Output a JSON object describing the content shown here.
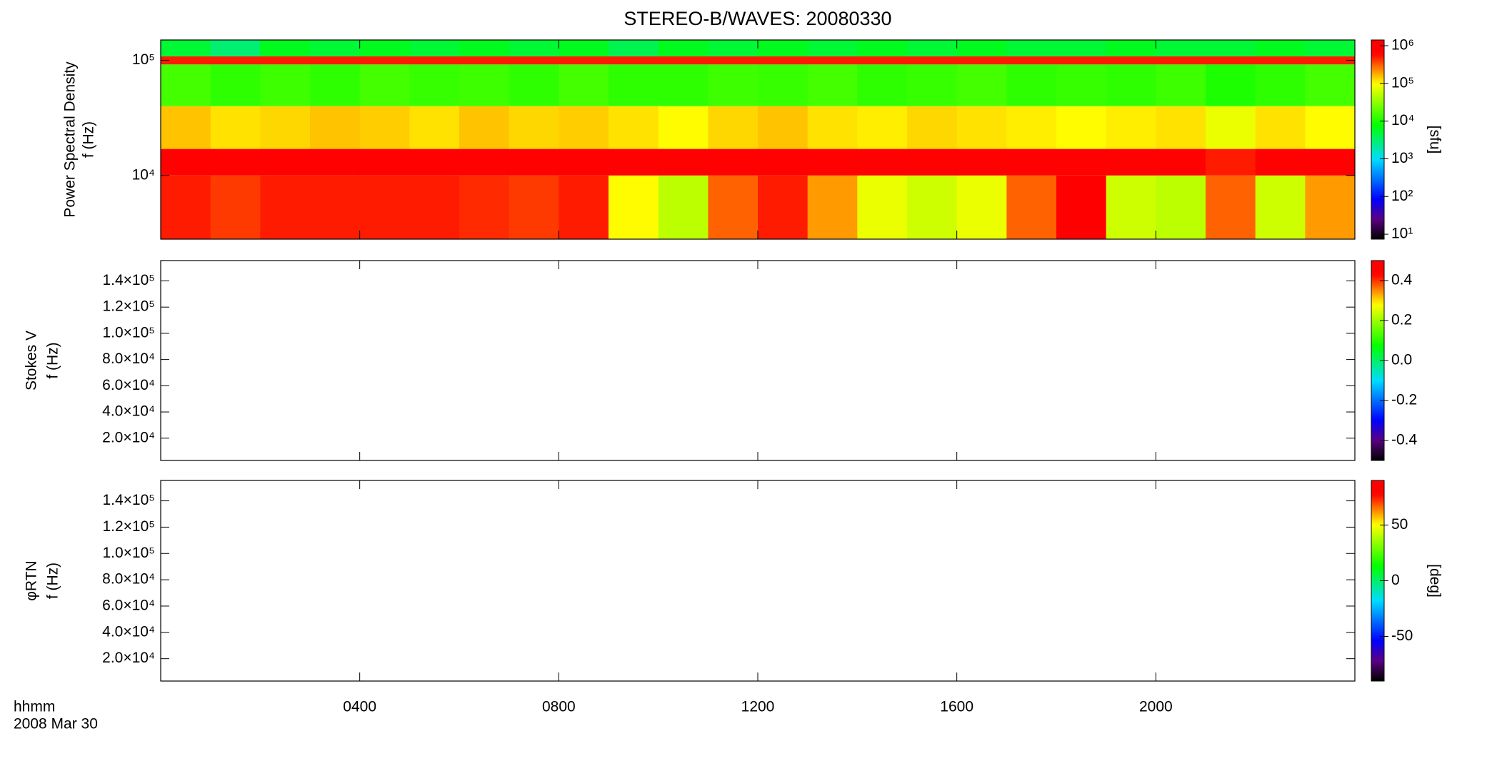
{
  "chart_data": [
    {
      "type": "heatmap",
      "title": "STEREO-B/WAVES: 20080330",
      "y_label": [
        "Power Spectral Density",
        "f (Hz)"
      ],
      "log_y": true,
      "ylim": [
        2800,
        150000
      ],
      "yticks": [
        {
          "value": 10000,
          "label": "10⁴"
        },
        {
          "value": 100000,
          "label": "10⁵"
        }
      ],
      "colormap": "rainbow",
      "x_bins": [
        0,
        1,
        2,
        3,
        4,
        5,
        6,
        7,
        8,
        9,
        10,
        11,
        12,
        13,
        14,
        15,
        16,
        17,
        18,
        19,
        20,
        21,
        22,
        23,
        24
      ],
      "y_bins": [
        2800,
        10000,
        17000,
        40000,
        92000,
        108000,
        150000
      ],
      "z": [
        [
          500000,
          400000,
          500000,
          500000,
          500000,
          500000,
          450000,
          400000,
          500000,
          100000,
          50000,
          300000,
          500000,
          200000,
          80000,
          60000,
          80000,
          300000,
          800000,
          60000,
          50000,
          300000,
          60000,
          200000
        ],
        [
          600000,
          600000,
          600000,
          600000,
          600000,
          600000,
          600000,
          600000,
          600000,
          600000,
          600000,
          600000,
          600000,
          600000,
          600000,
          600000,
          600000,
          600000,
          600000,
          600000,
          600000,
          500000,
          600000,
          600000
        ],
        [
          150000,
          120000,
          130000,
          150000,
          140000,
          120000,
          150000,
          130000,
          140000,
          120000,
          100000,
          130000,
          150000,
          120000,
          110000,
          130000,
          120000,
          110000,
          100000,
          110000,
          120000,
          80000,
          120000,
          100000
        ],
        [
          15000,
          12000,
          14000,
          12000,
          15000,
          13000,
          14000,
          12000,
          15000,
          12000,
          12000,
          14000,
          13000,
          15000,
          12000,
          13000,
          15000,
          12000,
          13000,
          12000,
          14000,
          10000,
          12000,
          15000
        ],
        [
          500000,
          500000,
          500000,
          500000,
          500000,
          500000,
          500000,
          500000,
          500000,
          500000,
          500000,
          500000,
          500000,
          500000,
          500000,
          500000,
          500000,
          500000,
          500000,
          500000,
          500000,
          500000,
          500000,
          500000
        ],
        [
          5000,
          3000,
          6000,
          5000,
          6000,
          5000,
          6000,
          5000,
          6000,
          4000,
          6000,
          5000,
          6000,
          5000,
          6000,
          5000,
          6000,
          5000,
          5000,
          6000,
          5000,
          5000,
          6000,
          5000
        ]
      ],
      "colorbar": {
        "label": "[sfu]",
        "log": true,
        "lim": [
          7.4,
          1420000
        ],
        "ticks": [
          {
            "value": 10,
            "label": "10¹"
          },
          {
            "value": 100,
            "label": "10²"
          },
          {
            "value": 1000,
            "label": "10³"
          },
          {
            "value": 10000,
            "label": "10⁴"
          },
          {
            "value": 100000,
            "label": "10⁵"
          },
          {
            "value": 1000000,
            "label": "10⁶"
          }
        ]
      }
    },
    {
      "type": "heatmap",
      "y_label": [
        "Stokes V",
        "f (Hz)"
      ],
      "log_y": false,
      "ylim": [
        3000,
        155500
      ],
      "yticks": [
        {
          "value": 20000,
          "label": "2.0×10⁴"
        },
        {
          "value": 40000,
          "label": "4.0×10⁴"
        },
        {
          "value": 60000,
          "label": "6.0×10⁴"
        },
        {
          "value": 80000,
          "label": "8.0×10⁴"
        },
        {
          "value": 100000,
          "label": "1.0×10⁵"
        },
        {
          "value": 120000,
          "label": "1.2×10⁵"
        },
        {
          "value": 140000,
          "label": "1.4×10⁵"
        }
      ],
      "colormap": "rainbow",
      "colorbar": {
        "log": false,
        "lim": [
          -0.5,
          0.5
        ],
        "ticks": [
          -0.4,
          -0.2,
          {
            "value": 0,
            "label": "0.0"
          },
          0.2,
          0.4
        ]
      }
    },
    {
      "type": "heatmap",
      "y_label": [
        "φRTN",
        "f (Hz)"
      ],
      "log_y": false,
      "ylim": [
        3000,
        155500
      ],
      "yticks": [
        {
          "value": 20000,
          "label": "2.0×10⁴"
        },
        {
          "value": 40000,
          "label": "4.0×10⁴"
        },
        {
          "value": 60000,
          "label": "6.0×10⁴"
        },
        {
          "value": 80000,
          "label": "8.0×10⁴"
        },
        {
          "value": 100000,
          "label": "1.0×10⁵"
        },
        {
          "value": 120000,
          "label": "1.2×10⁵"
        },
        {
          "value": 140000,
          "label": "1.4×10⁵"
        }
      ],
      "colormap": "rainbow",
      "colorbar": {
        "label": "[deg]",
        "log": false,
        "lim": [
          -90,
          90
        ],
        "ticks": [
          -50,
          0,
          50
        ]
      },
      "xlim": [
        0,
        24
      ],
      "xticks": [
        {
          "value": 4,
          "label": "0400"
        },
        {
          "value": 8,
          "label": "0800"
        },
        {
          "value": 12,
          "label": "1200"
        },
        {
          "value": 16,
          "label": "1600"
        },
        {
          "value": 20,
          "label": "2000"
        }
      ],
      "x_label": "hhmm",
      "date": "2008 Mar 30"
    }
  ]
}
